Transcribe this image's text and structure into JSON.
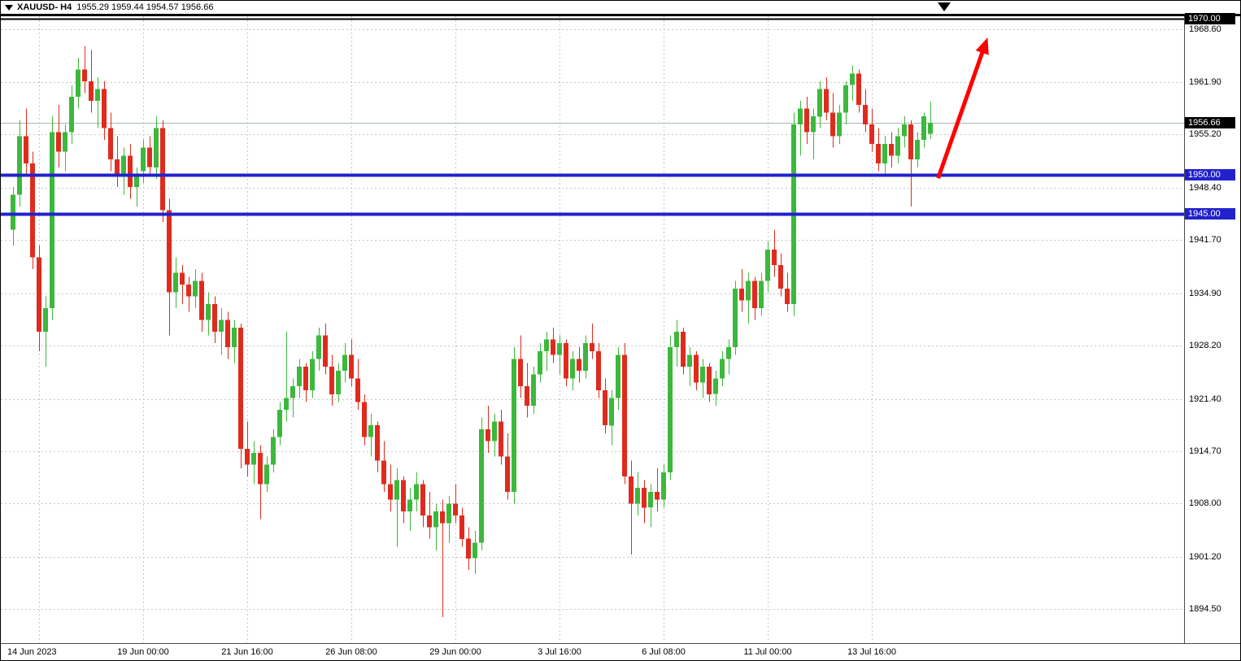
{
  "window": {
    "title_symbol": "XAUUSD- H4",
    "title_ohlc": "1955.29 1959.44 1954.57 1956.66"
  },
  "colors": {
    "background": "#ffffff",
    "grid": "#c6c6c6",
    "up": "#3cb83c",
    "down": "#df2b1e",
    "hline_blue": "#2222cc",
    "bid_line": "#a8b6b6",
    "arrow": "#ff0000",
    "axis_text": "#000000"
  },
  "icons": {
    "titlebar_icon": "triangle-down",
    "top_marker": "triangle-down"
  },
  "chart_data": {
    "type": "candlestick",
    "title": "XAUUSD- H4",
    "symbol": "XAUUSD",
    "timeframe": "H4",
    "current_bar": {
      "open": 1955.29,
      "high": 1959.44,
      "low": 1954.57,
      "close": 1956.66
    },
    "ylim": [
      1893,
      1971
    ],
    "grid_price_ticks": [
      1968.6,
      1961.9,
      1955.2,
      1948.4,
      1941.7,
      1934.9,
      1928.2,
      1921.4,
      1914.7,
      1908.0,
      1901.2,
      1894.5
    ],
    "time_gridlines": [
      {
        "label": "14 Jun 2023",
        "bar": 4
      },
      {
        "label": "19 Jun 00:00",
        "bar": 20
      },
      {
        "label": "21 Jun 16:00",
        "bar": 36
      },
      {
        "label": "26 Jun 08:00",
        "bar": 52
      },
      {
        "label": "29 Jun 00:00",
        "bar": 68
      },
      {
        "label": "3 Jul 16:00",
        "bar": 84
      },
      {
        "label": "6 Jul 08:00",
        "bar": 100
      },
      {
        "label": "11 Jul 00:00",
        "bar": 116
      },
      {
        "label": "13 Jul 16:00",
        "bar": 132
      }
    ],
    "hlines": [
      {
        "price": 1970.0,
        "label": "1970.00",
        "color": "#000000",
        "width": 2,
        "layer": "over",
        "label_bg": "#000000",
        "label_fg": "#ffffff"
      },
      {
        "price": 1956.66,
        "label": "1956.66",
        "color": "#a8b6b6",
        "width": 1,
        "layer": "under",
        "label_bg": "#000000",
        "label_fg": "#ffffff"
      },
      {
        "price": 1950.0,
        "label": "1950.00",
        "color": "#2222cc",
        "width": 4,
        "layer": "over",
        "label_bg": "#2222cc",
        "label_fg": "#ffffff"
      },
      {
        "price": 1945.0,
        "label": "1945.00",
        "color": "#2222cc",
        "width": 4,
        "layer": "over",
        "label_bg": "#2222cc",
        "label_fg": "#ffffff"
      }
    ],
    "arrow": {
      "from_bar": 142.2,
      "from_price": 1949.6,
      "to_bar": 149.8,
      "to_price": 1967.6,
      "color": "#ff0000",
      "width": 5
    },
    "candles": [
      [
        1943.0,
        1948.5,
        1941.0,
        1947.5
      ],
      [
        1947.5,
        1957.0,
        1946.0,
        1955.0
      ],
      [
        1955.0,
        1958.5,
        1950.0,
        1951.5
      ],
      [
        1951.5,
        1953.0,
        1938.0,
        1939.5
      ],
      [
        1939.5,
        1941.0,
        1927.5,
        1930.0
      ],
      [
        1930.0,
        1934.5,
        1925.5,
        1933.0
      ],
      [
        1933.0,
        1957.5,
        1931.5,
        1955.5
      ],
      [
        1955.5,
        1959.0,
        1951.0,
        1953.0
      ],
      [
        1953.0,
        1956.5,
        1950.5,
        1955.5
      ],
      [
        1955.5,
        1961.5,
        1954.0,
        1960.0
      ],
      [
        1960.0,
        1965.0,
        1958.5,
        1963.5
      ],
      [
        1963.5,
        1966.5,
        1960.5,
        1962.0
      ],
      [
        1962.0,
        1966.0,
        1958.0,
        1959.5
      ],
      [
        1959.5,
        1962.5,
        1956.0,
        1961.0
      ],
      [
        1961.0,
        1962.0,
        1954.5,
        1956.0
      ],
      [
        1956.0,
        1958.0,
        1950.5,
        1952.0
      ],
      [
        1952.0,
        1955.0,
        1948.5,
        1950.0
      ],
      [
        1950.0,
        1953.5,
        1947.5,
        1952.5
      ],
      [
        1952.5,
        1954.0,
        1947.0,
        1948.5
      ],
      [
        1948.5,
        1951.0,
        1946.0,
        1950.0
      ],
      [
        1950.5,
        1954.5,
        1949.0,
        1953.5
      ],
      [
        1953.5,
        1955.0,
        1950.0,
        1951.0
      ],
      [
        1951.0,
        1957.5,
        1949.5,
        1956.0
      ],
      [
        1956.0,
        1957.0,
        1944.0,
        1945.5
      ],
      [
        1945.5,
        1947.0,
        1929.5,
        1935.0
      ],
      [
        1935.0,
        1939.5,
        1933.0,
        1937.5
      ],
      [
        1937.5,
        1938.5,
        1933.5,
        1936.0
      ],
      [
        1936.0,
        1937.0,
        1932.5,
        1934.5
      ],
      [
        1934.5,
        1938.0,
        1933.0,
        1936.5
      ],
      [
        1936.5,
        1937.5,
        1930.0,
        1931.5
      ],
      [
        1931.5,
        1935.0,
        1929.5,
        1933.5
      ],
      [
        1933.5,
        1934.5,
        1928.5,
        1930.0
      ],
      [
        1930.0,
        1933.0,
        1927.0,
        1931.5
      ],
      [
        1931.5,
        1932.5,
        1926.5,
        1928.0
      ],
      [
        1928.0,
        1931.5,
        1926.0,
        1930.5
      ],
      [
        1930.5,
        1931.0,
        1912.5,
        1915.0
      ],
      [
        1915.0,
        1918.5,
        1911.5,
        1913.0
      ],
      [
        1913.0,
        1916.0,
        1910.5,
        1914.5
      ],
      [
        1914.5,
        1915.5,
        1906.0,
        1910.5
      ],
      [
        1910.5,
        1914.0,
        1909.5,
        1913.0
      ],
      [
        1913.0,
        1917.5,
        1912.0,
        1916.5
      ],
      [
        1916.5,
        1921.0,
        1915.5,
        1920.0
      ],
      [
        1920.0,
        1930.0,
        1918.5,
        1921.5
      ],
      [
        1921.5,
        1924.0,
        1919.0,
        1923.0
      ],
      [
        1923.0,
        1926.5,
        1921.5,
        1925.5
      ],
      [
        1925.5,
        1926.0,
        1921.0,
        1922.5
      ],
      [
        1922.5,
        1927.5,
        1921.5,
        1926.5
      ],
      [
        1926.5,
        1930.5,
        1925.0,
        1929.5
      ],
      [
        1929.5,
        1931.0,
        1924.5,
        1925.5
      ],
      [
        1925.5,
        1927.0,
        1920.5,
        1922.0
      ],
      [
        1922.0,
        1926.0,
        1921.0,
        1925.0
      ],
      [
        1925.0,
        1928.5,
        1923.5,
        1927.0
      ],
      [
        1927.0,
        1929.0,
        1923.0,
        1924.0
      ],
      [
        1924.0,
        1926.5,
        1920.0,
        1921.0
      ],
      [
        1921.0,
        1922.0,
        1915.5,
        1916.5
      ],
      [
        1916.5,
        1919.5,
        1914.0,
        1918.0
      ],
      [
        1918.0,
        1918.5,
        1912.0,
        1913.5
      ],
      [
        1913.5,
        1916.0,
        1909.5,
        1910.5
      ],
      [
        1910.5,
        1913.0,
        1907.0,
        1908.5
      ],
      [
        1908.5,
        1912.5,
        1902.5,
        1911.0
      ],
      [
        1911.0,
        1911.5,
        1905.5,
        1907.0
      ],
      [
        1907.0,
        1910.0,
        1904.5,
        1908.5
      ],
      [
        1908.5,
        1912.0,
        1907.0,
        1910.5
      ],
      [
        1910.5,
        1911.0,
        1905.0,
        1906.5
      ],
      [
        1906.5,
        1909.5,
        1903.5,
        1905.0
      ],
      [
        1905.0,
        1908.0,
        1902.0,
        1907.0
      ],
      [
        1907.0,
        1908.5,
        1893.5,
        1905.5
      ],
      [
        1905.5,
        1909.0,
        1903.0,
        1908.0
      ],
      [
        1908.0,
        1910.5,
        1905.5,
        1906.5
      ],
      [
        1906.5,
        1907.5,
        1902.5,
        1903.5
      ],
      [
        1903.5,
        1905.0,
        1899.5,
        1901.0
      ],
      [
        1901.0,
        1904.5,
        1899.0,
        1903.0
      ],
      [
        1903.0,
        1919.0,
        1902.0,
        1917.5
      ],
      [
        1917.5,
        1920.5,
        1914.5,
        1916.0
      ],
      [
        1916.0,
        1919.5,
        1914.0,
        1918.5
      ],
      [
        1918.5,
        1920.0,
        1913.0,
        1914.0
      ],
      [
        1914.0,
        1917.0,
        1908.5,
        1909.5
      ],
      [
        1909.5,
        1928.0,
        1908.0,
        1926.5
      ],
      [
        1926.5,
        1929.5,
        1921.5,
        1923.0
      ],
      [
        1923.0,
        1926.0,
        1919.0,
        1920.5
      ],
      [
        1920.5,
        1925.5,
        1919.5,
        1924.5
      ],
      [
        1924.5,
        1928.5,
        1923.5,
        1927.5
      ],
      [
        1927.5,
        1930.0,
        1925.0,
        1929.0
      ],
      [
        1929.0,
        1930.5,
        1926.0,
        1927.0
      ],
      [
        1927.0,
        1929.5,
        1924.5,
        1928.5
      ],
      [
        1928.5,
        1929.0,
        1923.0,
        1924.0
      ],
      [
        1924.0,
        1927.5,
        1922.5,
        1926.5
      ],
      [
        1926.5,
        1928.0,
        1923.5,
        1925.0
      ],
      [
        1925.0,
        1929.5,
        1924.0,
        1928.5
      ],
      [
        1928.5,
        1931.0,
        1926.5,
        1927.5
      ],
      [
        1927.5,
        1928.5,
        1921.5,
        1922.5
      ],
      [
        1922.5,
        1924.0,
        1917.0,
        1918.0
      ],
      [
        1918.0,
        1922.5,
        1915.5,
        1921.5
      ],
      [
        1921.5,
        1928.0,
        1920.0,
        1927.0
      ],
      [
        1927.0,
        1928.5,
        1910.5,
        1911.5
      ],
      [
        1911.5,
        1913.5,
        1901.5,
        1908.0
      ],
      [
        1908.0,
        1912.0,
        1906.5,
        1910.0
      ],
      [
        1910.0,
        1911.0,
        1905.5,
        1907.5
      ],
      [
        1907.5,
        1910.5,
        1905.0,
        1909.5
      ],
      [
        1909.5,
        1912.5,
        1907.0,
        1908.5
      ],
      [
        1908.5,
        1913.0,
        1907.5,
        1912.0
      ],
      [
        1912.0,
        1929.5,
        1911.0,
        1928.0
      ],
      [
        1928.0,
        1931.5,
        1925.5,
        1930.0
      ],
      [
        1930.0,
        1930.5,
        1924.5,
        1925.5
      ],
      [
        1925.5,
        1928.0,
        1923.0,
        1927.0
      ],
      [
        1927.0,
        1927.5,
        1922.5,
        1923.5
      ],
      [
        1923.5,
        1926.5,
        1921.5,
        1925.5
      ],
      [
        1925.5,
        1926.0,
        1921.0,
        1922.0
      ],
      [
        1922.0,
        1925.0,
        1920.5,
        1924.0
      ],
      [
        1924.0,
        1927.5,
        1923.0,
        1926.5
      ],
      [
        1926.5,
        1929.0,
        1924.5,
        1928.0
      ],
      [
        1928.0,
        1936.5,
        1927.0,
        1935.5
      ],
      [
        1935.5,
        1938.0,
        1932.5,
        1934.0
      ],
      [
        1934.0,
        1937.5,
        1931.0,
        1936.5
      ],
      [
        1936.5,
        1937.0,
        1931.5,
        1933.0
      ],
      [
        1933.0,
        1937.5,
        1932.0,
        1936.5
      ],
      [
        1936.5,
        1941.5,
        1935.0,
        1940.5
      ],
      [
        1940.5,
        1943.0,
        1937.0,
        1938.5
      ],
      [
        1938.5,
        1940.0,
        1934.5,
        1935.5
      ],
      [
        1935.5,
        1937.5,
        1932.5,
        1933.5
      ],
      [
        1933.5,
        1958.0,
        1932.0,
        1956.5
      ],
      [
        1956.5,
        1959.5,
        1952.5,
        1958.5
      ],
      [
        1958.5,
        1960.0,
        1954.0,
        1955.5
      ],
      [
        1955.5,
        1958.5,
        1952.0,
        1957.5
      ],
      [
        1957.5,
        1962.0,
        1956.0,
        1961.0
      ],
      [
        1961.0,
        1962.5,
        1957.0,
        1958.0
      ],
      [
        1958.0,
        1960.5,
        1953.5,
        1955.0
      ],
      [
        1955.0,
        1959.0,
        1954.0,
        1958.0
      ],
      [
        1958.0,
        1962.0,
        1956.5,
        1961.5
      ],
      [
        1961.5,
        1964.0,
        1959.5,
        1963.0
      ],
      [
        1963.0,
        1963.5,
        1958.0,
        1959.0
      ],
      [
        1959.0,
        1961.0,
        1955.5,
        1956.5
      ],
      [
        1956.5,
        1958.5,
        1953.0,
        1954.0
      ],
      [
        1954.0,
        1956.0,
        1950.5,
        1951.5
      ],
      [
        1951.5,
        1955.0,
        1950.0,
        1954.0
      ],
      [
        1954.0,
        1955.5,
        1951.0,
        1952.5
      ],
      [
        1952.5,
        1956.0,
        1951.5,
        1955.0
      ],
      [
        1955.0,
        1957.5,
        1953.5,
        1956.5
      ],
      [
        1956.5,
        1957.0,
        1946.0,
        1952.0
      ],
      [
        1952.0,
        1955.5,
        1951.0,
        1954.5
      ],
      [
        1954.5,
        1958.0,
        1953.5,
        1957.5
      ],
      [
        1955.3,
        1959.4,
        1954.6,
        1956.7
      ]
    ]
  }
}
